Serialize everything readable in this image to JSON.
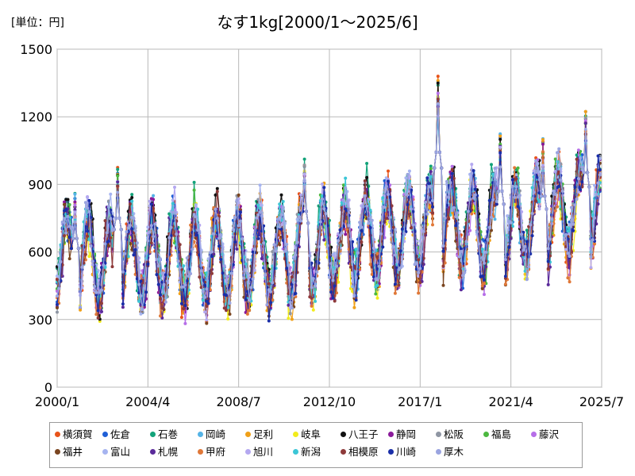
{
  "chart_data": {
    "type": "line",
    "title": "なす1kg[2000/1～2025/6]",
    "unit_label": "[単位：円]",
    "ylim": [
      0,
      1500
    ],
    "yticks": [
      0,
      300,
      600,
      900,
      1200,
      1500
    ],
    "xlim": [
      "2000/1",
      "2025/7"
    ],
    "xticks": [
      "2000/1",
      "2004/4",
      "2008/7",
      "2012/10",
      "2017/1",
      "2021/4",
      "2025/7"
    ],
    "grid": true,
    "legend_position": "bottom",
    "series": [
      {
        "name": "横須賀",
        "color": "#e8541a",
        "base": 0.0
      },
      {
        "name": "佐倉",
        "color": "#1f5fd6",
        "base": 0.02
      },
      {
        "name": "石巻",
        "color": "#13a37a",
        "base": 0.05
      },
      {
        "name": "岡崎",
        "color": "#54b3e6",
        "base": 0.01
      },
      {
        "name": "足利",
        "color": "#f0a018",
        "base": -0.02
      },
      {
        "name": "岐阜",
        "color": "#f2ec1c",
        "base": -0.04
      },
      {
        "name": "八王子",
        "color": "#111111",
        "base": 0.04
      },
      {
        "name": "静岡",
        "color": "#8a1a9a",
        "base": -0.01
      },
      {
        "name": "松阪",
        "color": "#8f96a3",
        "base": 0.03
      },
      {
        "name": "福島",
        "color": "#4cb840",
        "base": 0.03
      },
      {
        "name": "藤沢",
        "color": "#b66ee8",
        "base": 0.0
      },
      {
        "name": "福井",
        "color": "#7a4520",
        "base": -0.03
      },
      {
        "name": "富山",
        "color": "#a6b4f0",
        "base": 0.05
      },
      {
        "name": "札幌",
        "color": "#5a2a9a",
        "base": -0.02
      },
      {
        "name": "甲府",
        "color": "#e07838",
        "base": -0.05
      },
      {
        "name": "旭川",
        "color": "#b4a8f0",
        "base": 0.02
      },
      {
        "name": "新潟",
        "color": "#3cc6d6",
        "base": 0.01
      },
      {
        "name": "相模原",
        "color": "#8e3a3a",
        "base": -0.01
      },
      {
        "name": "川崎",
        "color": "#1a2ea8",
        "base": 0.0
      },
      {
        "name": "厚木",
        "color": "#9aa4e0",
        "base": 0.02
      }
    ],
    "trend": {
      "x": [
        "2000/1",
        "2002/1",
        "2004/1",
        "2006/1",
        "2008/1",
        "2010/1",
        "2012/1",
        "2014/1",
        "2016/1",
        "2018/1",
        "2020/1",
        "2022/1",
        "2024/1",
        "2025/6"
      ],
      "y": [
        590,
        560,
        575,
        570,
        580,
        575,
        610,
        650,
        690,
        720,
        700,
        730,
        780,
        800
      ]
    },
    "peaks": [
      {
        "x": "2000/11",
        "y": 880
      },
      {
        "x": "2002/11",
        "y": 1000
      },
      {
        "x": "2011/8",
        "y": 1040
      },
      {
        "x": "2017/11",
        "y": 1390
      },
      {
        "x": "2020/10",
        "y": 1160
      },
      {
        "x": "2022/10",
        "y": 1130
      },
      {
        "x": "2024/10",
        "y": 1270
      }
    ]
  }
}
